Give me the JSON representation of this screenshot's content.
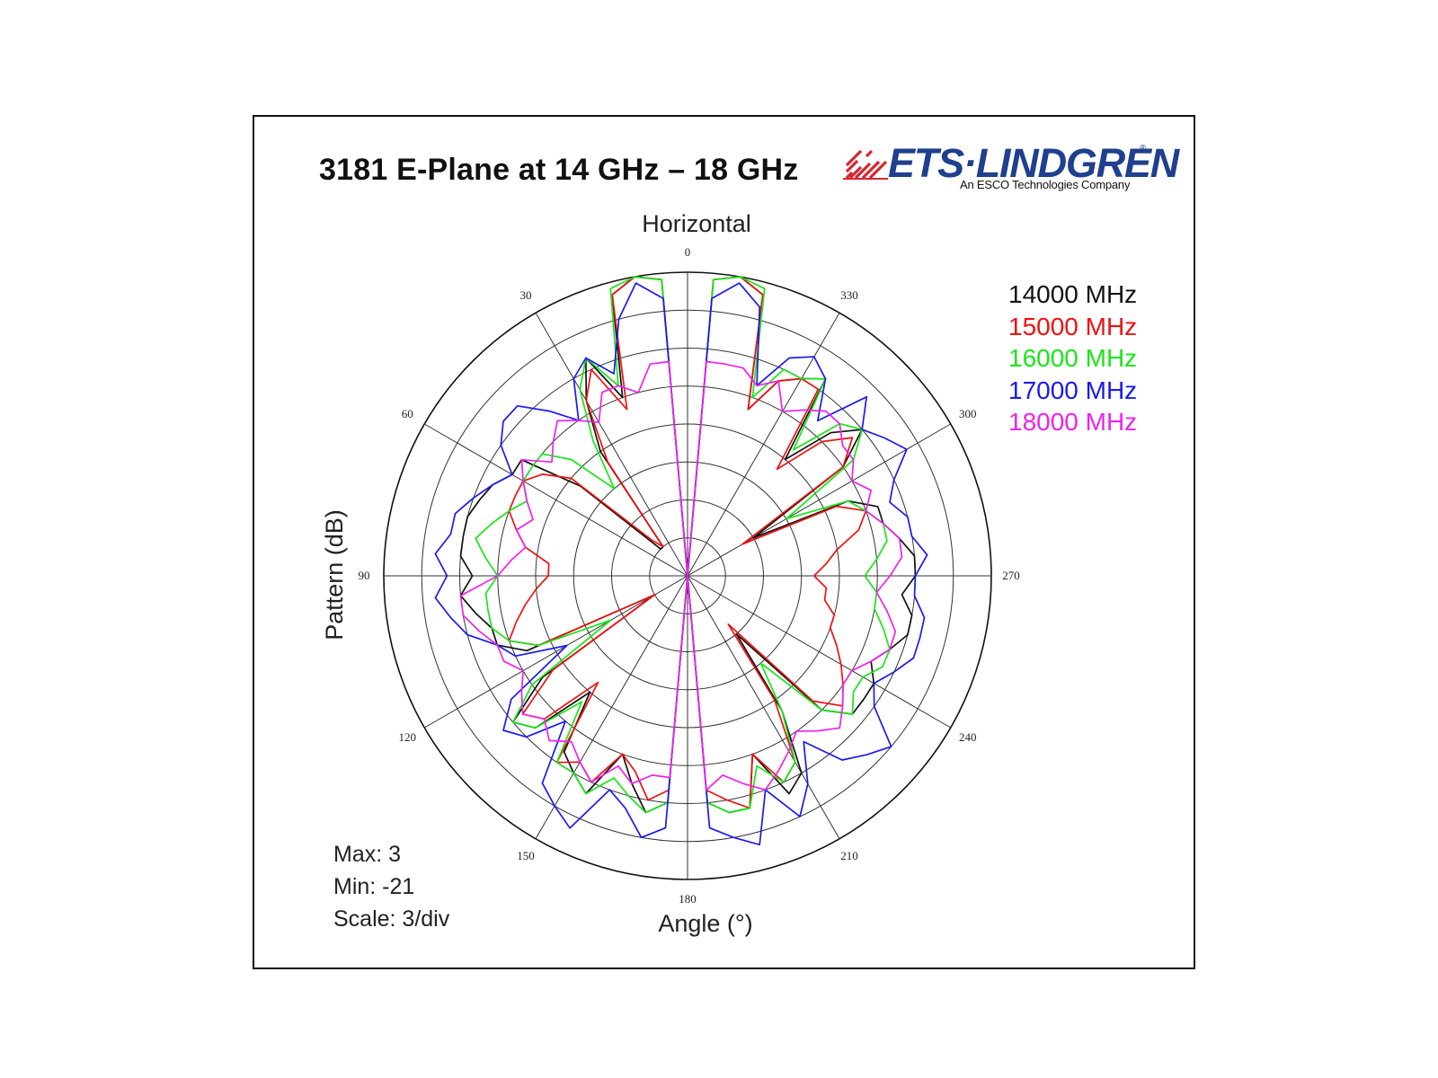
{
  "page": {
    "title": "3181 E-Plane at 14 GHz – 18 GHz",
    "logo": {
      "wordmark": "ETS·LINDGREN",
      "registered": "®",
      "tagline": "An ESCO Technologies Company",
      "icon": "signal-waves-icon",
      "brand_color": "#1f3f8f",
      "mark_color": "#d8262e"
    }
  },
  "chart_data": {
    "type": "polar",
    "title": "Horizontal",
    "xlabel": "Angle (°)",
    "ylabel": "Pattern (dB)",
    "angle_ticks": [
      "0",
      "30",
      "60",
      "90",
      "120",
      "150",
      "180",
      "210",
      "240",
      "270",
      "300",
      "330"
    ],
    "angle_direction": "counterclockwise",
    "zero_position": "top",
    "r_range": [
      -21,
      3
    ],
    "r_scale_per_div": 3,
    "grid": true,
    "legend_position": "top-right",
    "stats": {
      "max_label": "Max: 3",
      "min_label": "Min: -21",
      "scale_label": "Scale: 3/div"
    },
    "series": [
      {
        "name": "14000 MHz",
        "color": "#111111",
        "angles": [
          0,
          5,
          10,
          15,
          20,
          25,
          30,
          35,
          40,
          45,
          50,
          55,
          60,
          65,
          70,
          75,
          80,
          85,
          90,
          95,
          100,
          105,
          110,
          115,
          120,
          125,
          130,
          135,
          140,
          145,
          150,
          155,
          160,
          165,
          170,
          175,
          180,
          185,
          190,
          195,
          200,
          205,
          210,
          215,
          220,
          225,
          230,
          235,
          240,
          245,
          250,
          255,
          260,
          265,
          270,
          275,
          280,
          285,
          290,
          295,
          300,
          305,
          310,
          315,
          320,
          325,
          330,
          335,
          340,
          345,
          350,
          355
        ],
        "values": [
          -21,
          2.5,
          3,
          2,
          -6,
          -2,
          -5,
          -9,
          -18,
          -18,
          -10,
          -5,
          -5,
          -4,
          -3.5,
          -3,
          -3,
          -3,
          -4,
          -3,
          -4,
          -5,
          -5,
          -7,
          -18,
          -7,
          -3,
          -4,
          -9,
          -4,
          -3,
          -2,
          -6,
          -4,
          -2,
          -3,
          -21,
          -3,
          -2,
          -2,
          -6,
          -2,
          -3,
          -8,
          -15,
          -6,
          -4,
          -4,
          -4,
          -5,
          -4,
          -3,
          -3,
          -4,
          -3,
          -3,
          -4,
          -5,
          -5,
          -7,
          -15,
          -6,
          -3,
          -5,
          -9,
          -2,
          -3,
          -4,
          -7,
          2,
          3,
          2.5
        ]
      },
      {
        "name": "15000 MHz",
        "color": "#ee1111",
        "angles": [
          0,
          5,
          10,
          15,
          20,
          25,
          30,
          35,
          40,
          45,
          50,
          55,
          60,
          65,
          70,
          75,
          80,
          85,
          90,
          95,
          100,
          105,
          110,
          115,
          120,
          125,
          130,
          135,
          140,
          145,
          150,
          155,
          160,
          165,
          170,
          175,
          180,
          185,
          190,
          195,
          200,
          205,
          210,
          215,
          220,
          225,
          230,
          235,
          240,
          245,
          250,
          255,
          260,
          265,
          270,
          275,
          280,
          285,
          290,
          295,
          300,
          305,
          310,
          315,
          320,
          325,
          330,
          335,
          340,
          345,
          350,
          355
        ],
        "values": [
          -21,
          2.5,
          3,
          2,
          -7,
          -3,
          -5,
          -10,
          -18,
          -17,
          -9,
          -7,
          -6,
          -6,
          -6,
          -7,
          -8,
          -10,
          -10,
          -9,
          -8,
          -7,
          -6,
          -8,
          -18,
          -8,
          -4,
          -5,
          -10,
          -3,
          -4,
          -3,
          -6,
          -5,
          -3,
          -4,
          -21,
          -4,
          -3,
          -2,
          -6,
          -3,
          -4,
          -9,
          -16,
          -7,
          -5,
          -6,
          -7,
          -8,
          -9,
          -9,
          -10,
          -10,
          -11,
          -10,
          -9,
          -7,
          -6,
          -8,
          -16,
          -6,
          -4,
          -6,
          -10,
          -3,
          -3,
          -4,
          -7,
          2,
          3,
          2.5
        ]
      },
      {
        "name": "16000 MHz",
        "color": "#19e619",
        "angles": [
          0,
          5,
          10,
          15,
          20,
          25,
          30,
          35,
          40,
          45,
          50,
          55,
          60,
          65,
          70,
          75,
          80,
          85,
          90,
          95,
          100,
          105,
          110,
          115,
          120,
          125,
          130,
          135,
          140,
          145,
          150,
          155,
          160,
          165,
          170,
          175,
          180,
          185,
          190,
          195,
          200,
          205,
          210,
          215,
          220,
          225,
          230,
          235,
          240,
          245,
          250,
          255,
          260,
          265,
          270,
          275,
          280,
          285,
          290,
          295,
          300,
          305,
          310,
          315,
          320,
          325,
          330,
          335,
          340,
          345,
          350,
          355
        ],
        "values": [
          -21,
          2.5,
          3,
          2.5,
          -5,
          -2,
          -4,
          -8,
          -12,
          -8,
          -6,
          -6,
          -6,
          -7,
          -6,
          -5,
          -4,
          -5,
          -6,
          -5,
          -5,
          -5,
          -6,
          -8,
          -14,
          -6,
          -3,
          -4,
          -8,
          -3,
          -3,
          -2,
          -4,
          -3,
          -2,
          -3,
          -21,
          -3,
          -2,
          -2,
          -5,
          -3,
          -4,
          -8,
          -12,
          -6,
          -4,
          -5,
          -5,
          -4,
          -4,
          -5,
          -6,
          -6,
          -7,
          -6,
          -5,
          -5,
          -6,
          -7,
          -12,
          -5,
          -3,
          -4,
          -8,
          -2,
          -3,
          -3,
          -6,
          2.5,
          3,
          2.5
        ]
      },
      {
        "name": "17000 MHz",
        "color": "#1a1aee",
        "angles": [
          0,
          5,
          10,
          15,
          20,
          25,
          30,
          35,
          40,
          45,
          50,
          55,
          60,
          65,
          70,
          75,
          80,
          85,
          90,
          95,
          100,
          105,
          110,
          115,
          120,
          125,
          130,
          135,
          140,
          145,
          150,
          155,
          160,
          165,
          170,
          175,
          180,
          185,
          190,
          195,
          200,
          205,
          210,
          215,
          220,
          225,
          230,
          235,
          240,
          245,
          250,
          255,
          260,
          265,
          270,
          275,
          280,
          285,
          290,
          295,
          300,
          305,
          310,
          315,
          320,
          325,
          330,
          335,
          340,
          345,
          350,
          355
        ],
        "values": [
          -21,
          1,
          2.5,
          0,
          -4,
          -2,
          -3,
          -6,
          -4,
          -2,
          -2,
          -3,
          -5,
          -4,
          -3,
          -2,
          -2,
          -1,
          -2,
          -1,
          -2,
          -3,
          -5,
          -6,
          -10,
          -4,
          -2,
          -3,
          -6,
          -1,
          0,
          1,
          -3,
          -2,
          0,
          -1,
          -21,
          -1,
          0,
          1,
          -3,
          0,
          -2,
          -5,
          -2,
          -1,
          0,
          -3,
          -4,
          -3,
          -2,
          -2,
          -2,
          -3,
          -3,
          -2,
          -3,
          -3,
          -4,
          -3,
          -1,
          -2,
          -3,
          -1,
          -5,
          -2,
          -1,
          -2,
          -5,
          1,
          2.5,
          1
        ]
      },
      {
        "name": "18000 MHz",
        "color": "#ee22ee",
        "angles": [
          0,
          5,
          10,
          15,
          20,
          25,
          30,
          35,
          40,
          45,
          50,
          55,
          60,
          65,
          70,
          75,
          80,
          85,
          90,
          95,
          100,
          105,
          110,
          115,
          120,
          125,
          130,
          135,
          140,
          145,
          150,
          155,
          160,
          165,
          170,
          175,
          180,
          185,
          190,
          195,
          200,
          205,
          210,
          215,
          220,
          225,
          230,
          235,
          240,
          245,
          250,
          255,
          260,
          265,
          270,
          275,
          280,
          285,
          290,
          295,
          300,
          305,
          310,
          315,
          320,
          325,
          330,
          335,
          340,
          345,
          350,
          355
        ],
        "values": [
          -21,
          -4,
          -4,
          -6,
          -5,
          -5,
          -7,
          -6,
          -5,
          -6,
          -7,
          -5,
          -6,
          -7,
          -8,
          -7,
          -8,
          -7,
          -6,
          -3,
          -3,
          -4,
          -5,
          -5,
          -6,
          -5,
          -4,
          -5,
          -4,
          -5,
          -4,
          -3,
          -5,
          -4,
          -5,
          -5,
          -21,
          -4,
          -5,
          -4,
          -3,
          -4,
          -5,
          -6,
          -5,
          -4,
          -5,
          -6,
          -6,
          -5,
          -4,
          -4,
          -5,
          -6,
          -5,
          -4,
          -4,
          -5,
          -6,
          -5,
          -6,
          -5,
          -5,
          -4,
          -4,
          -5,
          -6,
          -4,
          -5,
          -4,
          -4,
          -4
        ]
      }
    ]
  }
}
